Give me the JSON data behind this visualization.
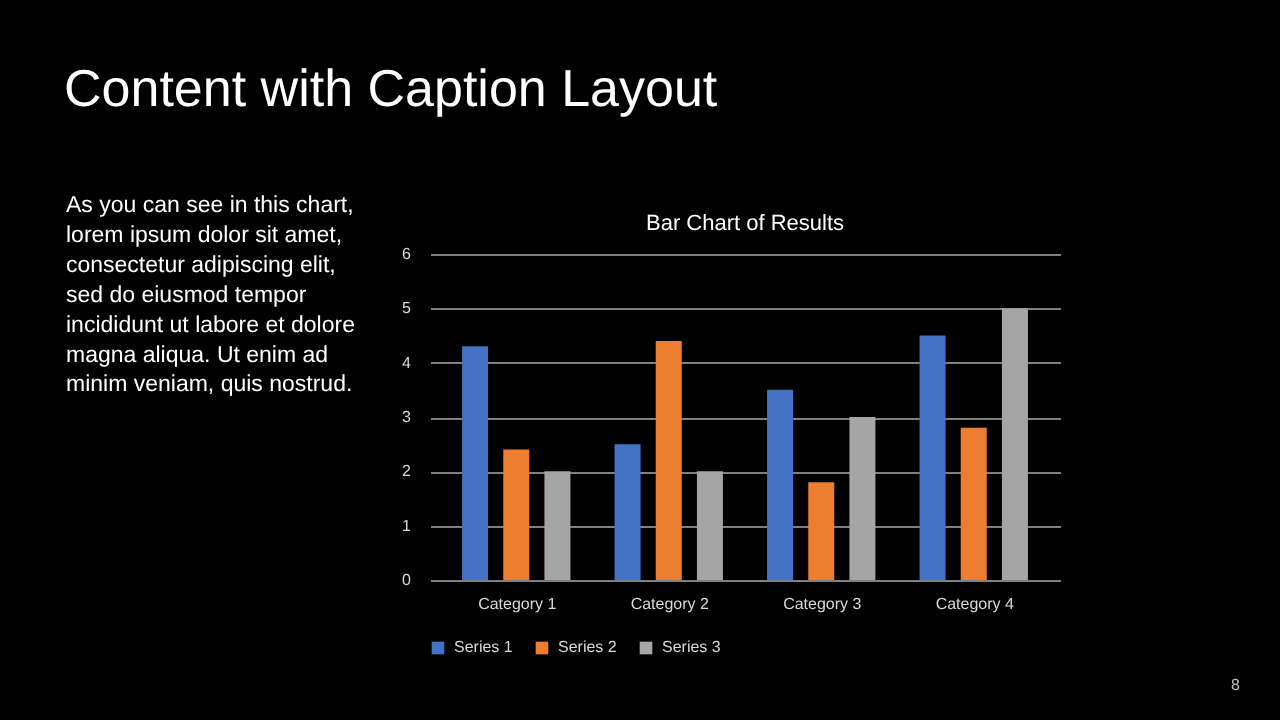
{
  "chart_data": {
    "type": "bar",
    "title": "Bar Chart of Results",
    "categories": [
      "Category 1",
      "Category 2",
      "Category 3",
      "Category 4"
    ],
    "series": [
      {
        "name": "Series 1",
        "color": "#4472c4",
        "values": [
          4.3,
          2.5,
          3.5,
          4.5
        ]
      },
      {
        "name": "Series 2",
        "color": "#ed7d31",
        "values": [
          2.4,
          4.4,
          1.8,
          2.8
        ]
      },
      {
        "name": "Series 3",
        "color": "#a5a5a5",
        "values": [
          2,
          2,
          3,
          5
        ]
      }
    ],
    "ylim": [
      0,
      6
    ],
    "yticks": [
      0,
      1,
      2,
      3,
      4,
      5,
      6
    ],
    "grid": "y",
    "legend": "bottom",
    "annotations": [
      "Content with Caption Layout",
      "As you can see in this chart,\nlorem ipsum dolor sit amet,\nconsectetur adipiscing elit,\nsed do eiusmod tempor\nincididunt ut labore et dolore\nmagna aliqua. Ut enim ad\nminim veniam, quis nostrud.",
      "8"
    ]
  }
}
